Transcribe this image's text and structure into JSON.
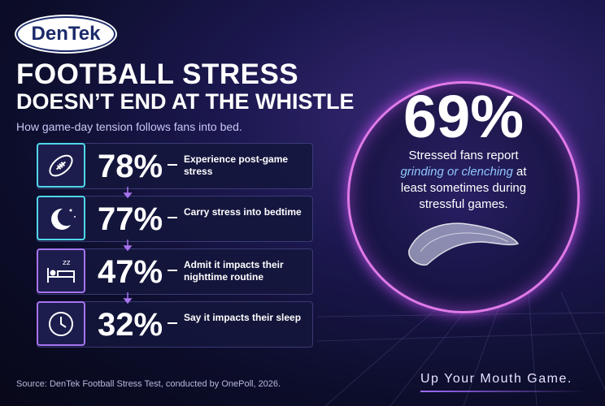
{
  "logo": "DenTek",
  "header": {
    "title_line1": "FOOTBALL STRESS",
    "title_line2": "DOESN’T END AT THE WHISTLE",
    "subtitle": "How game-day tension follows fans into bed."
  },
  "stats": [
    {
      "value": "78%",
      "label": "Experience post-game stress"
    },
    {
      "value": "77%",
      "label": "Carry stress into bedtime"
    },
    {
      "value": "47%",
      "label": "Admit it impacts their nighttime routine"
    },
    {
      "value": "32%",
      "label": "Say it impacts their sleep"
    }
  ],
  "highlight": {
    "value": "69%",
    "text_before": "Stressed fans report",
    "emphasis": "grinding or clenching",
    "text_after": "at least sometimes during stressful games."
  },
  "footer": {
    "source": "Source: DenTek Football Stress Test, conducted by OnePoll, 2026.",
    "tagline": "Up Your Mouth Game."
  }
}
